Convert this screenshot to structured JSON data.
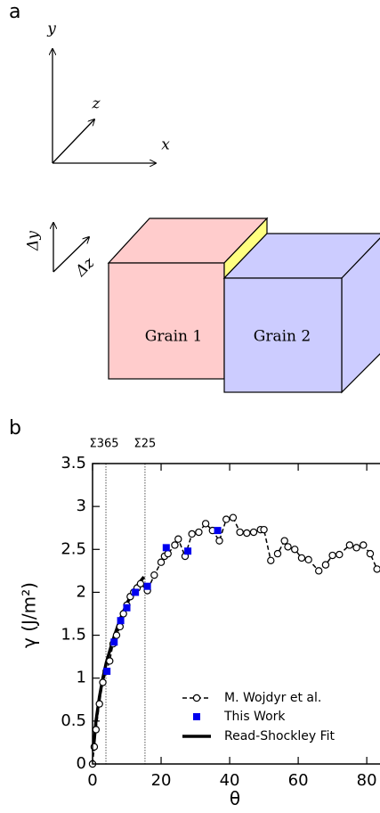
{
  "diagram": {
    "panel_label": "a",
    "axes": [
      "y",
      "z",
      "x"
    ],
    "delta_labels": [
      "Δy",
      "Δz"
    ],
    "grains": [
      "Grain 1",
      "Grain 2"
    ]
  },
  "chart_data": {
    "type": "line",
    "panel_label": "b",
    "xlabel": "θ",
    "ylabel": "γ (J/m²)",
    "xlim": [
      0,
      83.6
    ],
    "ylim": [
      0,
      3.5
    ],
    "xticks": [
      0,
      20,
      40,
      60,
      80
    ],
    "yticks": [
      0,
      0.5,
      1,
      1.5,
      2,
      2.5,
      3,
      3.5
    ],
    "annotations": [
      {
        "label": "Σ365",
        "x": 3.9
      },
      {
        "label": "Σ25",
        "x": 15.3
      }
    ],
    "legend": "lower right",
    "series": [
      {
        "name": "M. Wojdyr et al.",
        "color": "#000000",
        "marker": "circle",
        "linestyle": "dashed",
        "x": [
          0,
          0.5,
          1,
          2,
          3,
          4,
          5,
          6,
          7,
          8,
          9,
          10,
          11,
          12,
          13,
          14,
          16,
          18,
          20,
          21,
          22,
          24,
          25,
          27,
          29,
          31,
          33,
          35,
          37,
          39,
          41,
          43,
          45,
          47,
          49,
          50,
          52,
          54,
          56,
          57,
          59,
          61,
          63,
          66,
          68,
          70,
          72,
          75,
          77,
          79,
          81,
          83
        ],
        "values": [
          0,
          0.2,
          0.4,
          0.7,
          0.95,
          1.08,
          1.2,
          1.4,
          1.5,
          1.6,
          1.75,
          1.85,
          1.95,
          2.0,
          2.05,
          2.1,
          2.02,
          2.2,
          2.35,
          2.42,
          2.45,
          2.55,
          2.62,
          2.42,
          2.68,
          2.7,
          2.8,
          2.72,
          2.6,
          2.85,
          2.87,
          2.7,
          2.69,
          2.7,
          2.73,
          2.73,
          2.37,
          2.45,
          2.6,
          2.53,
          2.5,
          2.4,
          2.38,
          2.25,
          2.32,
          2.43,
          2.44,
          2.55,
          2.52,
          2.55,
          2.45,
          2.27
        ]
      },
      {
        "name": "This Work",
        "color": "#0000ee",
        "marker": "square",
        "linestyle": "none",
        "x": [
          4.2,
          6.3,
          8.2,
          10,
          12.5,
          16,
          21.5,
          27.8,
          36.5
        ],
        "values": [
          1.08,
          1.42,
          1.67,
          1.82,
          2.0,
          2.07,
          2.52,
          2.48,
          2.72
        ]
      },
      {
        "name": "Read-Shockley Fit",
        "color": "#000000",
        "marker": "none",
        "linestyle": "solid",
        "x": [
          0.2,
          1,
          2,
          3,
          4,
          6,
          8,
          10,
          12,
          14,
          15
        ],
        "values": [
          0.15,
          0.5,
          0.78,
          1.0,
          1.18,
          1.45,
          1.68,
          1.87,
          2.02,
          2.13,
          2.18
        ]
      }
    ]
  }
}
